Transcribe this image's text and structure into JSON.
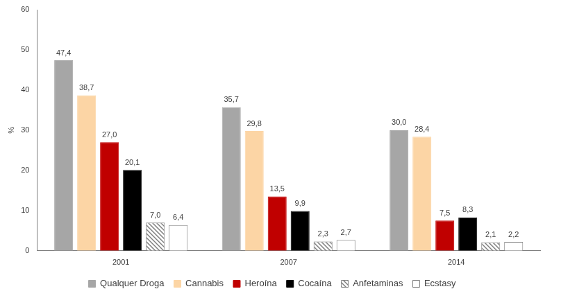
{
  "chart_data": {
    "type": "bar",
    "y_label": "%",
    "categories": [
      "2001",
      "2007",
      "2014"
    ],
    "series": [
      {
        "name": "Qualquer Droga",
        "color": "#a6a6a6",
        "values": [
          47.4,
          35.7,
          30.0
        ],
        "value_labels": [
          "47,4",
          "35,7",
          "30,0"
        ]
      },
      {
        "name": "Cannabis",
        "color": "#fcd5a5",
        "values": [
          38.7,
          29.8,
          28.4
        ],
        "value_labels": [
          "38,7",
          "29,8",
          "28,4"
        ]
      },
      {
        "name": "Heroína",
        "color": "#c00000",
        "values": [
          27.0,
          13.5,
          7.5
        ],
        "value_labels": [
          "27,0",
          "13,5",
          "7,5"
        ]
      },
      {
        "name": "Cocaína",
        "color": "#000000",
        "values": [
          20.1,
          9.9,
          8.3
        ],
        "value_labels": [
          "20,1",
          "9,9",
          "8,3"
        ]
      },
      {
        "name": "Anfetaminas",
        "color": "#7f7f7f",
        "values": [
          7.0,
          2.3,
          2.1
        ],
        "value_labels": [
          "7,0",
          "2,3",
          "2,1"
        ]
      },
      {
        "name": "Ecstasy",
        "color": "#ffffff",
        "values": [
          6.4,
          2.7,
          2.2
        ],
        "value_labels": [
          "6,4",
          "2,7",
          "2,2"
        ]
      }
    ],
    "ylim": [
      0,
      60
    ],
    "yticks": [
      0,
      10,
      20,
      30,
      40,
      50,
      60
    ],
    "grid": false,
    "legend": "bottom",
    "data_labels": true
  }
}
